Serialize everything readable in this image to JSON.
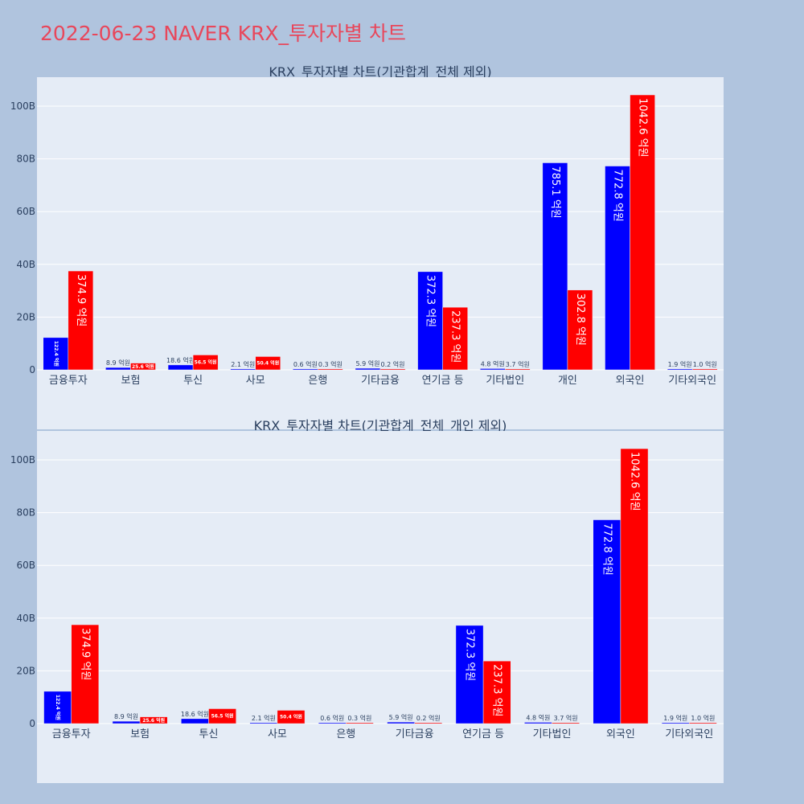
{
  "page": {
    "title": "2022-06-23 NAVER KRX_투자자별 차트",
    "title_color": "#e8475b",
    "background": "#b0c4de",
    "plot_background": "#e5ecf6"
  },
  "chart_data": [
    {
      "type": "bar",
      "title": "KRX_투자자별 차트(기관합계_전체 제외)",
      "xlabel": "",
      "ylabel": "",
      "ylim": [
        0,
        110000000000
      ],
      "yticks": [
        0,
        20000000000,
        40000000000,
        60000000000,
        80000000000,
        100000000000
      ],
      "ytick_labels": [
        "0",
        "20B",
        "40B",
        "60B",
        "80B",
        "100B"
      ],
      "grid": true,
      "legend": "none",
      "categories": [
        "금융투자",
        "보험",
        "투신",
        "사모",
        "은행",
        "기타금융",
        "연기금 등",
        "기타법인",
        "개인",
        "외국인",
        "기타외국인"
      ],
      "series": [
        {
          "color": "#0000ff",
          "values": [
            12240000000,
            890000000,
            1860000000,
            210000000,
            60000000,
            590000000,
            37230000000,
            480000000,
            78510000000,
            77280000000,
            190000000
          ],
          "labels": [
            "122.4 억원",
            "8.9 억원",
            "18.6 억원",
            "2.1 억원",
            "0.6 억원",
            "5.9 억원",
            "372.3 억원",
            "4.8 억원",
            "785.1 억원",
            "772.8 억원",
            "1.9 억원"
          ]
        },
        {
          "color": "#ff0000",
          "values": [
            37490000000,
            2560000000,
            5650000000,
            5040000000,
            30000000,
            20000000,
            23730000000,
            370000000,
            30280000000,
            104260000000,
            100000000
          ],
          "labels": [
            "374.9 억원",
            "25.6 억원",
            "56.5 억원",
            "50.4 억원",
            "0.3 억원",
            "0.2 억원",
            "237.3 억원",
            "3.7 억원",
            "302.8 억원",
            "1042.6 억원",
            "1.0 억원"
          ]
        }
      ]
    },
    {
      "type": "bar",
      "title": "KRX_투자자별 차트(기관합계_전체_개인 제외)",
      "xlabel": "",
      "ylabel": "",
      "ylim": [
        0,
        110000000000
      ],
      "yticks": [
        0,
        20000000000,
        40000000000,
        60000000000,
        80000000000,
        100000000000
      ],
      "ytick_labels": [
        "0",
        "20B",
        "40B",
        "60B",
        "80B",
        "100B"
      ],
      "grid": true,
      "legend": "none",
      "categories": [
        "금융투자",
        "보험",
        "투신",
        "사모",
        "은행",
        "기타금융",
        "연기금 등",
        "기타법인",
        "외국인",
        "기타외국인"
      ],
      "series": [
        {
          "color": "#0000ff",
          "values": [
            12240000000,
            890000000,
            1860000000,
            210000000,
            60000000,
            590000000,
            37230000000,
            480000000,
            77280000000,
            190000000
          ],
          "labels": [
            "122.4 억원",
            "8.9 억원",
            "18.6 억원",
            "2.1 억원",
            "0.6 억원",
            "5.9 억원",
            "372.3 억원",
            "4.8 억원",
            "772.8 억원",
            "1.9 억원"
          ]
        },
        {
          "color": "#ff0000",
          "values": [
            37490000000,
            2560000000,
            5650000000,
            5040000000,
            30000000,
            20000000,
            23730000000,
            370000000,
            104260000000,
            100000000
          ],
          "labels": [
            "374.9 억원",
            "25.6 억원",
            "56.5 억원",
            "50.4 억원",
            "0.3 억원",
            "0.2 억원",
            "237.3 억원",
            "3.7 억원",
            "1042.6 억원",
            "1.0 억원"
          ]
        }
      ]
    }
  ]
}
